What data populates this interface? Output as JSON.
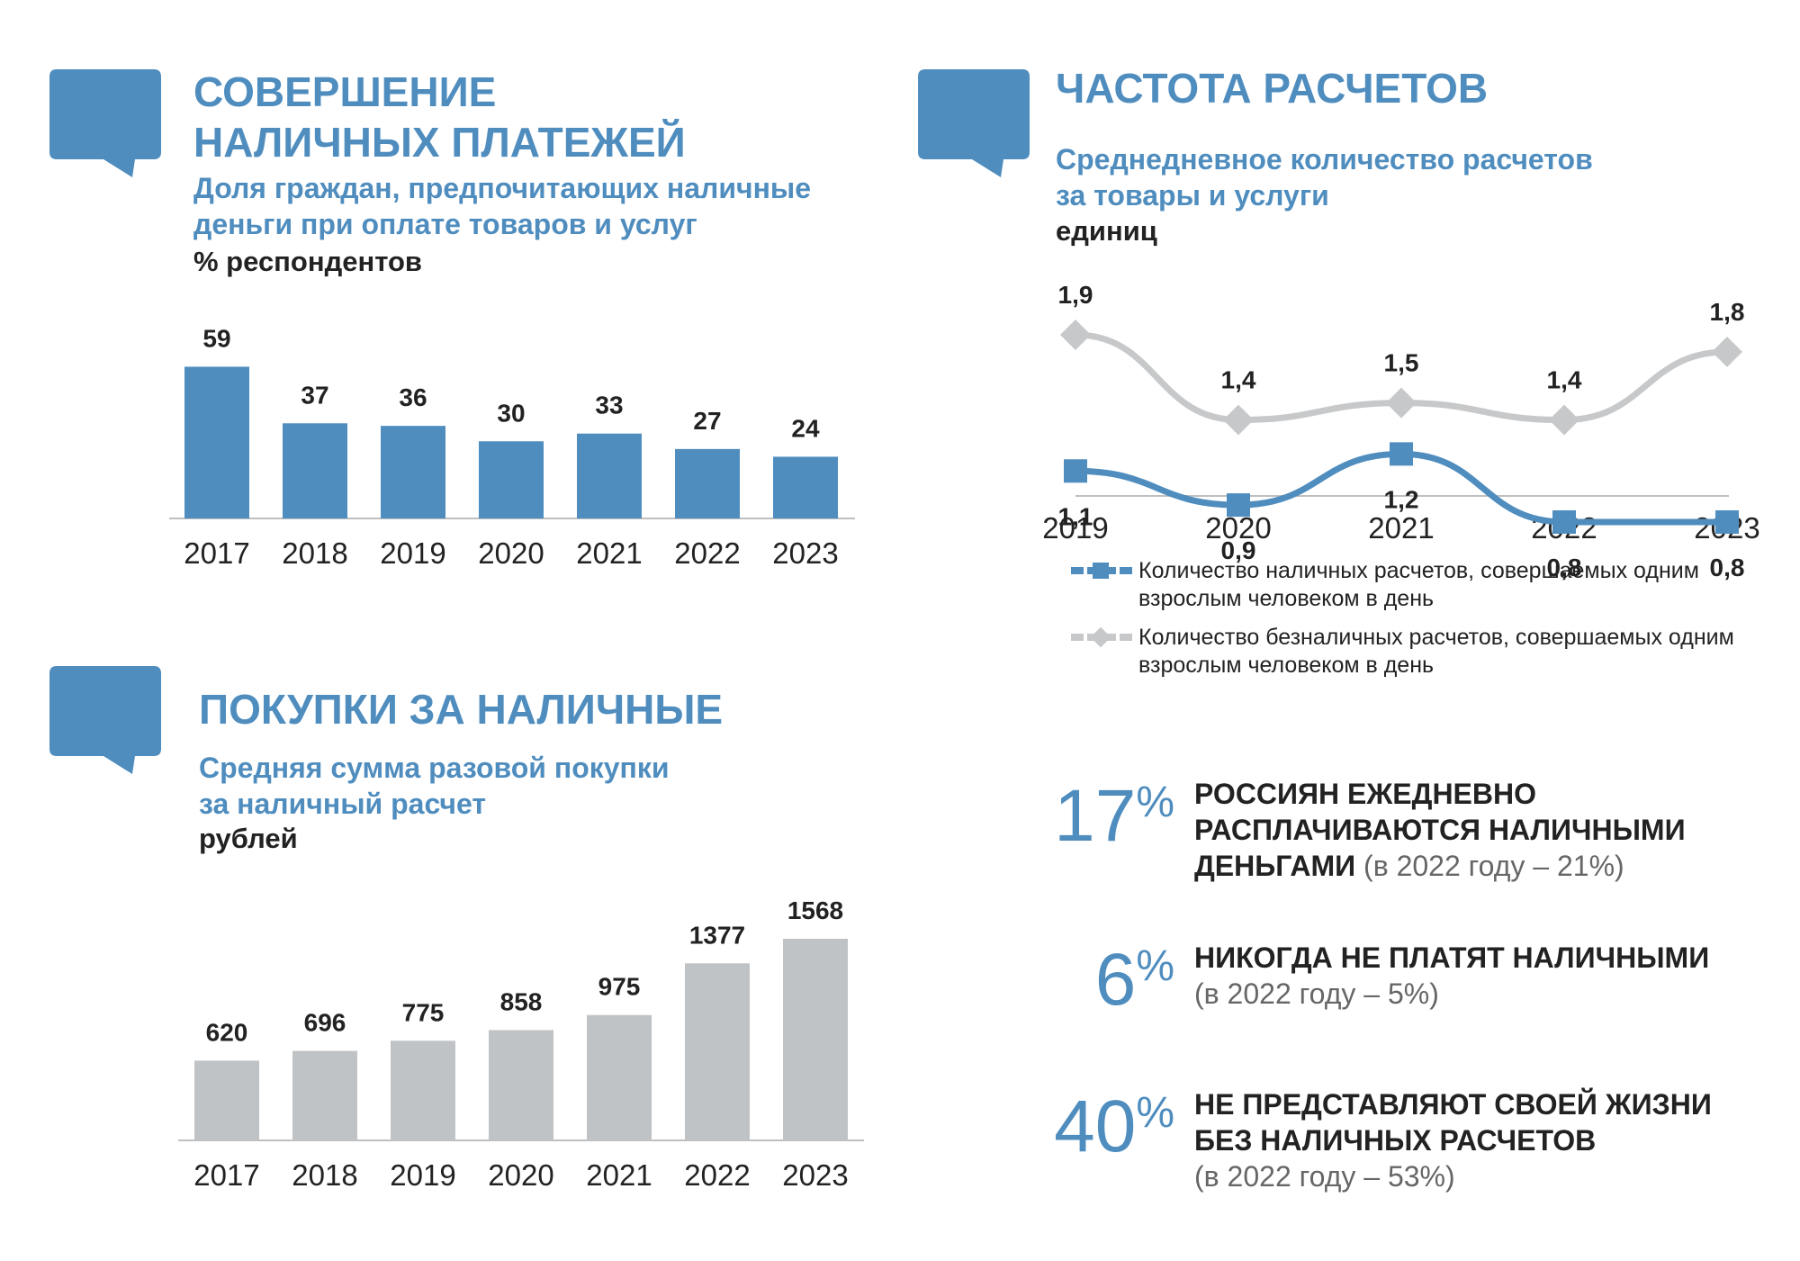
{
  "cash_payments": {
    "title": "СОВЕРШЕНИЕ\nНАЛИЧНЫХ ПЛАТЕЖЕЙ",
    "subtitle": "Доля граждан, предпочитающих наличные\nденьги при оплате товаров и услуг",
    "unit": "% респондентов"
  },
  "frequency": {
    "title": "ЧАСТОТА РАСЧЕТОВ",
    "subtitle": "Среднедневное количество расчетов\nза товары и услуги",
    "unit": "единиц",
    "legend": [
      "Количество наличных расчетов, совершаемых одним взрослым человеком в день",
      "Количество безналичных расчетов, совершаемых одним взрослым человеком в день"
    ]
  },
  "cash_purchases": {
    "title": "ПОКУПКИ ЗА НАЛИЧНЫЕ",
    "subtitle": "Средняя сумма разовой покупки\nза наличный расчет",
    "unit": "рублей"
  },
  "stats": [
    {
      "number": "17",
      "pct": "%",
      "text": "РОССИЯН ЕЖЕДНЕВНО\nРАСПЛАЧИВАЮТСЯ НАЛИЧНЫМИ\nДЕНЬГАМИ",
      "note": "(в 2022 году – 21%)"
    },
    {
      "number": "6",
      "pct": "%",
      "text": "НИКОГДА НЕ ПЛАТЯТ НАЛИЧНЫМИ",
      "note": "(в 2022 году – 5%)"
    },
    {
      "number": "40",
      "pct": "%",
      "text": "НЕ ПРЕДСТАВЛЯЮТ СВОЕЙ ЖИЗНИ\nБЕЗ НАЛИЧНЫХ РАСЧЕТОВ",
      "note": "(в 2022 году – 53%)"
    }
  ],
  "colors": {
    "accent": "#4f8dbf",
    "gray": "#c0c3c6",
    "axis": "#bfbfbf"
  },
  "chart_data": [
    {
      "type": "bar",
      "categories": [
        "2017",
        "2018",
        "2019",
        "2020",
        "2021",
        "2022",
        "2023"
      ],
      "values": [
        59,
        37,
        36,
        30,
        33,
        27,
        24
      ],
      "ylim": [
        0,
        70
      ],
      "color": "#4f8dbf"
    },
    {
      "type": "line",
      "x": [
        "2019",
        "2020",
        "2021",
        "2022",
        "2023"
      ],
      "series": [
        {
          "name": "Количество безналичных расчетов, совершаемых одним взрослым человеком в день",
          "values": [
            "1,9",
            "1,4",
            "1,5",
            "1,4",
            "1,8"
          ],
          "color": "#c6c8ca",
          "marker": "diamond"
        },
        {
          "name": "Количество наличных расчетов, совершаемых одним взрослым человеком в день",
          "values": [
            "1,1",
            "0,9",
            "1,2",
            "0,8",
            "0,8"
          ],
          "color": "#4f8dbf",
          "marker": "square"
        }
      ]
    },
    {
      "type": "bar",
      "categories": [
        "2017",
        "2018",
        "2019",
        "2020",
        "2021",
        "2022",
        "2023"
      ],
      "values": [
        620,
        696,
        775,
        858,
        975,
        1377,
        1568
      ],
      "ylim": [
        0,
        1750
      ],
      "color": "#c0c3c6"
    }
  ]
}
